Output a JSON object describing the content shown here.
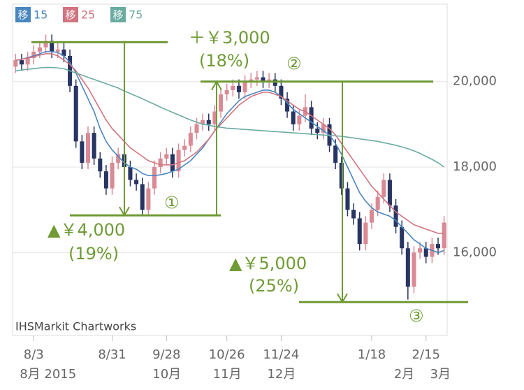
{
  "chart_data": {
    "type": "candlestick",
    "categories": [
      null,
      null,
      null,
      "8/3",
      null,
      null,
      null,
      null,
      null,
      null,
      null,
      null,
      null,
      null,
      null,
      null,
      "8/31",
      null,
      null,
      null,
      null,
      null,
      null,
      null,
      null,
      "9/28",
      null,
      null,
      null,
      null,
      null,
      null,
      null,
      null,
      null,
      "10/26",
      null,
      null,
      null,
      null,
      null,
      null,
      null,
      null,
      "11/24",
      null,
      null,
      null,
      null,
      null,
      null,
      null,
      null,
      null,
      null,
      null,
      null,
      null,
      null,
      "1/18",
      null,
      null,
      null,
      null,
      null,
      null,
      null,
      null,
      "2/15",
      null,
      null,
      null
    ],
    "category_months": [
      null,
      null,
      null,
      "8月 2015",
      null,
      null,
      null,
      null,
      null,
      null,
      null,
      null,
      null,
      null,
      null,
      null,
      null,
      null,
      null,
      null,
      null,
      null,
      null,
      null,
      null,
      "10月",
      null,
      null,
      null,
      null,
      null,
      null,
      null,
      null,
      null,
      "11月",
      null,
      null,
      null,
      null,
      null,
      null,
      null,
      null,
      "12月",
      null,
      null,
      null,
      null,
      null,
      null,
      null,
      null,
      null,
      null,
      null,
      null,
      null,
      null,
      null,
      null,
      null,
      null,
      null,
      null,
      "2月",
      null,
      null,
      null,
      null,
      null,
      "3月"
    ],
    "open": [
      20350,
      20500,
      20400,
      20550,
      20700,
      20800,
      20950,
      20700,
      20750,
      20600,
      19900,
      18600,
      18100,
      18800,
      18200,
      17900,
      17500,
      18100,
      18300,
      18000,
      17700,
      17600,
      17000,
      17500,
      18000,
      18200,
      18300,
      17900,
      18400,
      18500,
      18800,
      19000,
      19100,
      19000,
      19300,
      19700,
      19800,
      19900,
      19750,
      20000,
      20050,
      20100,
      20000,
      20050,
      19900,
      19600,
      19300,
      19000,
      19200,
      19400,
      18900,
      18800,
      19000,
      18500,
      18100,
      17500,
      17000,
      16800,
      16200,
      16700,
      17000,
      17300,
      17700,
      17100,
      16600,
      16100,
      15200,
      16000,
      16100,
      15900,
      16200,
      16100
    ],
    "high": [
      20650,
      20650,
      20700,
      20850,
      20950,
      21100,
      21100,
      20900,
      20900,
      20750,
      20050,
      18750,
      18950,
      18950,
      18350,
      18050,
      18250,
      18450,
      18450,
      18150,
      17850,
      17750,
      17650,
      18150,
      18350,
      18450,
      18450,
      18550,
      18650,
      18950,
      19150,
      19250,
      19250,
      19450,
      19850,
      19950,
      20050,
      20050,
      20150,
      20200,
      20250,
      20250,
      20200,
      20200,
      20050,
      19750,
      19450,
      19350,
      19700,
      19550,
      19050,
      19150,
      19150,
      18650,
      18250,
      17650,
      17150,
      16950,
      16850,
      17150,
      17450,
      17850,
      17850,
      17250,
      16750,
      16250,
      16150,
      16250,
      16250,
      16350,
      16350,
      16850
    ],
    "low": [
      20200,
      20250,
      20250,
      20400,
      20550,
      20650,
      20550,
      20550,
      20450,
      19750,
      18450,
      17950,
      17950,
      18050,
      17750,
      17350,
      17350,
      17950,
      17850,
      17550,
      17450,
      16850,
      16850,
      17350,
      17850,
      18050,
      17750,
      17750,
      18250,
      18350,
      18650,
      18850,
      18850,
      18850,
      19150,
      19550,
      19650,
      19600,
      19600,
      19850,
      19900,
      19850,
      19850,
      19750,
      19450,
      19150,
      18850,
      18850,
      19050,
      18750,
      18650,
      18650,
      18350,
      17950,
      17350,
      16850,
      16650,
      16050,
      16050,
      16550,
      16850,
      17150,
      16950,
      16450,
      15950,
      14900,
      15050,
      15850,
      15750,
      15750,
      15950,
      15950
    ],
    "close": [
      20500,
      20400,
      20550,
      20700,
      20800,
      20950,
      20700,
      20750,
      20600,
      19900,
      18600,
      18100,
      18800,
      18200,
      17900,
      17500,
      18100,
      18300,
      18000,
      17700,
      17600,
      17000,
      17500,
      18000,
      18200,
      18300,
      17900,
      18400,
      18500,
      18800,
      19000,
      19100,
      19000,
      19300,
      19700,
      19800,
      19900,
      19750,
      20000,
      20050,
      20100,
      20000,
      20050,
      19900,
      19600,
      19300,
      19000,
      19200,
      19400,
      18900,
      18800,
      19000,
      18500,
      18100,
      17500,
      17000,
      16800,
      16200,
      16700,
      17000,
      17300,
      17700,
      17100,
      16600,
      16100,
      15200,
      16000,
      16100,
      15900,
      16200,
      16100,
      16700
    ],
    "up_color": "#d98a94",
    "down_color": "#283462",
    "series": [
      {
        "badge": "移",
        "name": "15",
        "color": "#4a86c0",
        "values": [
          20500,
          20520,
          20560,
          20600,
          20650,
          20700,
          20700,
          20680,
          20600,
          20450,
          20200,
          19900,
          19600,
          19300,
          18900,
          18600,
          18400,
          18250,
          18100,
          18000,
          17950,
          17850,
          17800,
          17800,
          17820,
          17850,
          17900,
          17950,
          18050,
          18150,
          18300,
          18450,
          18650,
          18850,
          19050,
          19250,
          19400,
          19550,
          19650,
          19700,
          19750,
          19800,
          19800,
          19750,
          19650,
          19500,
          19350,
          19250,
          19150,
          19050,
          18950,
          18850,
          18750,
          18550,
          18300,
          18000,
          17700,
          17400,
          17200,
          17050,
          16950,
          16900,
          16850,
          16750,
          16600,
          16450,
          16300,
          16200,
          16100,
          16050,
          16000,
          16050
        ]
      },
      {
        "badge": "移",
        "name": "25",
        "color": "#d2737f",
        "values": [
          20500,
          20520,
          20550,
          20580,
          20620,
          20650,
          20650,
          20600,
          20500,
          20400,
          20250,
          20050,
          19850,
          19600,
          19350,
          19100,
          18900,
          18750,
          18600,
          18450,
          18350,
          18250,
          18150,
          18100,
          18050,
          18050,
          18050,
          18100,
          18150,
          18250,
          18350,
          18500,
          18650,
          18850,
          19000,
          19150,
          19300,
          19450,
          19550,
          19650,
          19700,
          19750,
          19750,
          19700,
          19650,
          19550,
          19450,
          19350,
          19300,
          19200,
          19100,
          19000,
          18900,
          18750,
          18550,
          18350,
          18150,
          17950,
          17750,
          17550,
          17400,
          17250,
          17100,
          16950,
          16850,
          16750,
          16650,
          16600,
          16550,
          16500,
          16450,
          16450
        ]
      },
      {
        "badge": "移",
        "name": "75",
        "color": "#6aaba0",
        "values": [
          20250,
          20270,
          20290,
          20300,
          20320,
          20330,
          20330,
          20320,
          20300,
          20250,
          20200,
          20150,
          20100,
          20050,
          20000,
          19950,
          19900,
          19850,
          19780,
          19720,
          19660,
          19600,
          19530,
          19470,
          19400,
          19340,
          19280,
          19220,
          19160,
          19100,
          19050,
          19000,
          18980,
          18950,
          18930,
          18910,
          18900,
          18890,
          18880,
          18870,
          18860,
          18850,
          18840,
          18830,
          18820,
          18810,
          18800,
          18790,
          18780,
          18770,
          18760,
          18750,
          18740,
          18730,
          18720,
          18700,
          18680,
          18660,
          18640,
          18620,
          18600,
          18570,
          18540,
          18510,
          18470,
          18430,
          18380,
          18320,
          18250,
          18180,
          18100,
          18000
        ]
      }
    ],
    "ylim": [
      14060,
      21810
    ],
    "yticks": [
      {
        "value": 16000,
        "label": "16,000"
      },
      {
        "value": 18000,
        "label": "18,000"
      },
      {
        "value": 20000,
        "label": "20,000"
      }
    ],
    "grid": true,
    "annotation_color": "#6f9a35",
    "reference_lines": [
      20920,
      16870,
      20000,
      14840
    ],
    "annotations": [
      {
        "text": "＋￥3,000",
        "subtext": "(18%)",
        "marker": "②"
      },
      {
        "text": "▲￥4,000",
        "subtext": "(19%)",
        "marker": "①"
      },
      {
        "text": "▲￥5,000",
        "subtext": "(25%)",
        "marker": "③"
      }
    ],
    "watermark": "IHSMarkit Chartworks"
  }
}
